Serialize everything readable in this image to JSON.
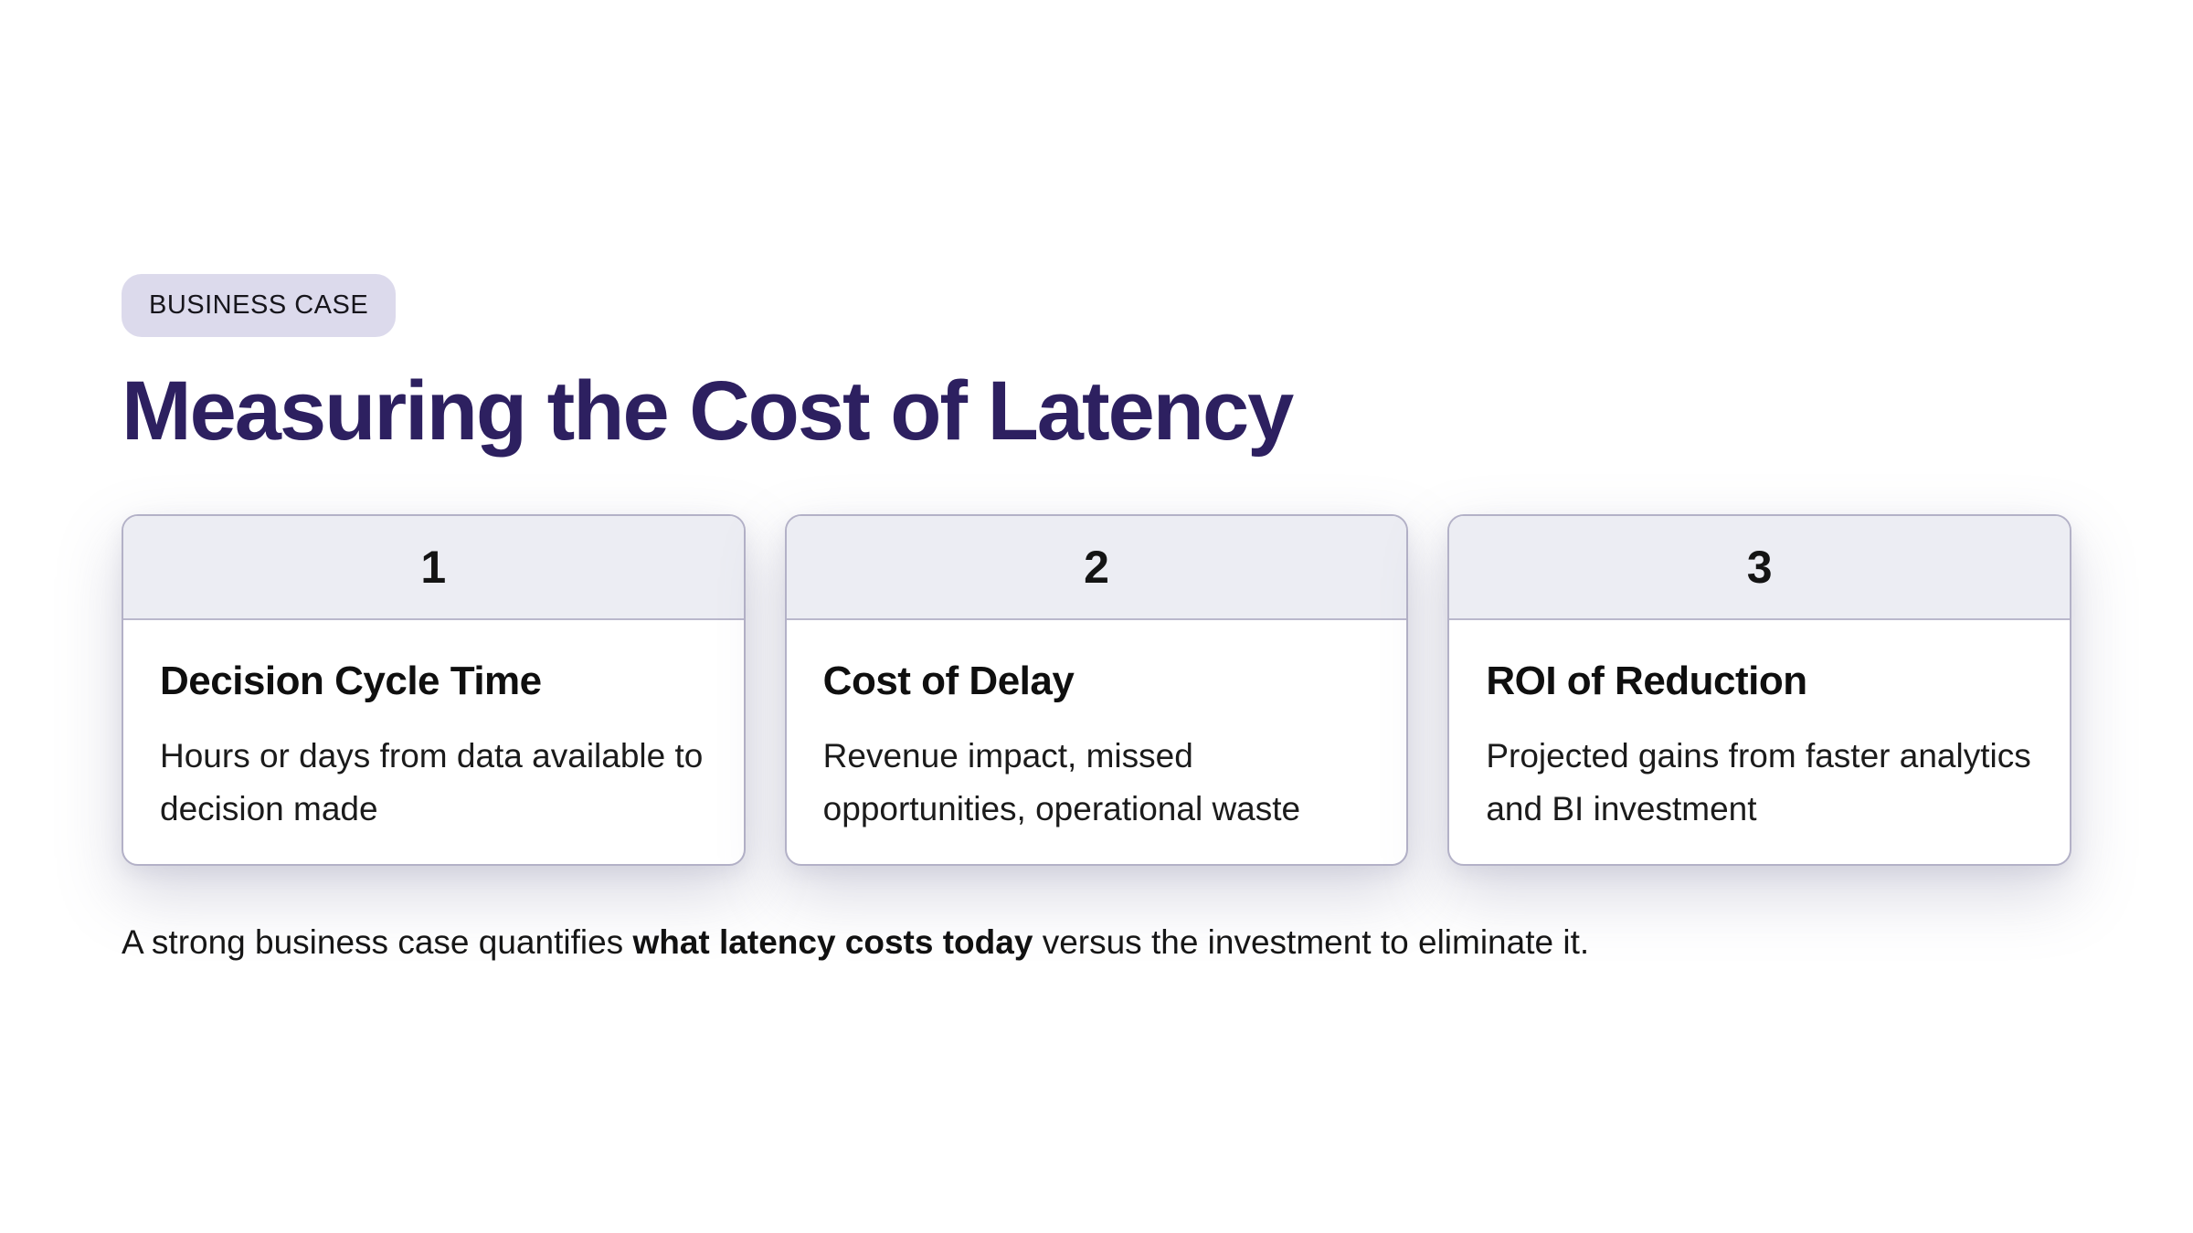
{
  "badge": {
    "label": "BUSINESS CASE"
  },
  "title": "Measuring the Cost of Latency",
  "cards": [
    {
      "number": "1",
      "title": "Decision Cycle Time",
      "description": "Hours or days from data available to decision made"
    },
    {
      "number": "2",
      "title": "Cost of Delay",
      "description": "Revenue impact, missed opportunities, operational waste"
    },
    {
      "number": "3",
      "title": "ROI of Reduction",
      "description": "Projected gains from faster analytics and BI investment"
    }
  ],
  "footer": {
    "prefix": "A strong business case quantifies ",
    "bold": "what latency costs today",
    "suffix": " versus the investment to eliminate it."
  },
  "colors": {
    "title_text": "#2d2060",
    "badge_background": "#dcdaec",
    "card_border": "#b3b1c7",
    "card_header_background": "#ecedf3",
    "body_text": "#161616",
    "page_background": "#ffffff"
  }
}
